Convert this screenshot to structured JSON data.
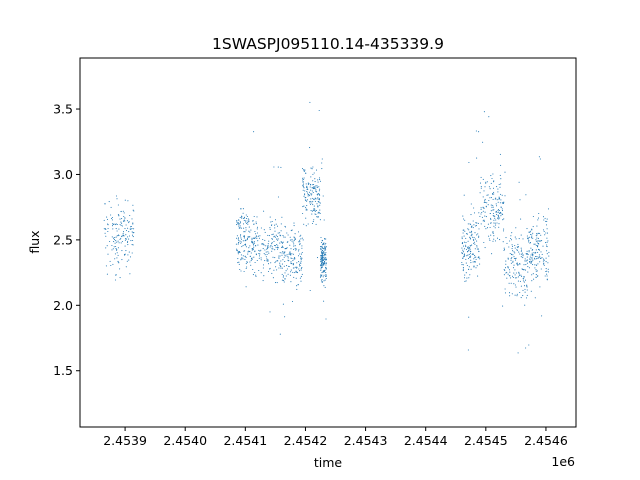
{
  "chart_data": {
    "type": "scatter",
    "title": "1SWASPJ095110.14-435339.9",
    "xlabel": "time",
    "ylabel": "flux",
    "x_offset_label": "1e6",
    "xlim": [
      2453825,
      2454650
    ],
    "ylim": [
      1.07,
      3.89
    ],
    "x_ticks": [
      2453900,
      2454000,
      2454100,
      2454200,
      2454300,
      2454400,
      2454500,
      2454600
    ],
    "x_tick_labels": [
      "2.4539",
      "2.4540",
      "2.4541",
      "2.4542",
      "2.4543",
      "2.4544",
      "2.4545",
      "2.4546"
    ],
    "y_ticks": [
      1.5,
      2.0,
      2.5,
      3.0,
      3.5
    ],
    "y_tick_labels": [
      "1.5",
      "2.0",
      "2.5",
      "3.0",
      "3.5"
    ],
    "grid": false,
    "marker_color": "#1f77b4",
    "marker": "small dots",
    "segments": [
      {
        "x_start": 2453865,
        "x_end": 2453915,
        "flux_center": 2.55,
        "flux_spread": 0.22
      },
      {
        "x_start": 2454085,
        "x_end": 2454115,
        "flux_center": 2.5,
        "flux_spread": 0.22
      },
      {
        "x_start": 2454115,
        "x_end": 2454160,
        "flux_center": 2.42,
        "flux_spread": 0.22
      },
      {
        "x_start": 2454160,
        "x_end": 2454195,
        "flux_center": 2.38,
        "flux_spread": 0.2
      },
      {
        "x_start": 2454195,
        "x_end": 2454225,
        "flux_center": 2.85,
        "flux_spread": 0.2
      },
      {
        "x_start": 2454225,
        "x_end": 2454235,
        "flux_center": 2.35,
        "flux_spread": 0.15
      },
      {
        "x_start": 2454460,
        "x_end": 2454490,
        "flux_center": 2.45,
        "flux_spread": 0.22
      },
      {
        "x_start": 2454490,
        "x_end": 2454530,
        "flux_center": 2.72,
        "flux_spread": 0.25
      },
      {
        "x_start": 2454530,
        "x_end": 2454570,
        "flux_center": 2.32,
        "flux_spread": 0.22
      },
      {
        "x_start": 2454570,
        "x_end": 2454605,
        "flux_center": 2.42,
        "flux_spread": 0.25
      }
    ]
  }
}
